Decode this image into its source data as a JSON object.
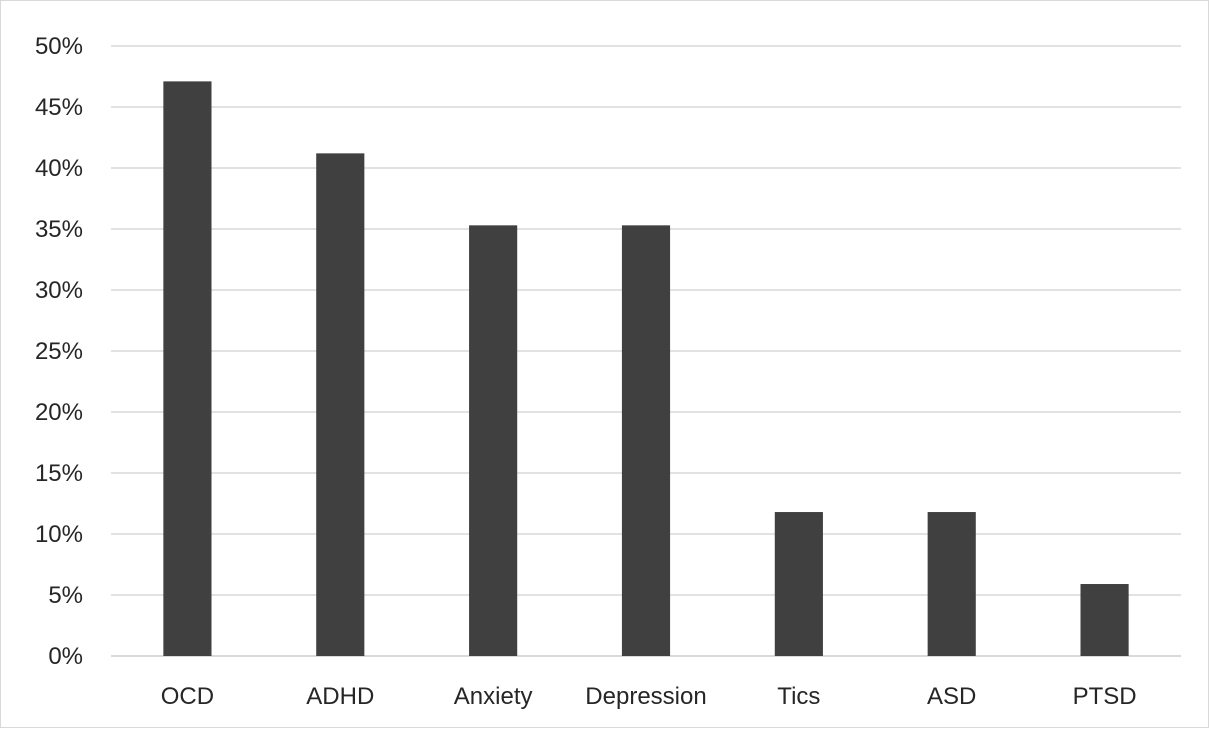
{
  "chart_data": {
    "type": "bar",
    "title": "",
    "xlabel": "",
    "ylabel": "",
    "categories": [
      "OCD",
      "ADHD",
      "Anxiety",
      "Depression",
      "Tics",
      "ASD",
      "PTSD"
    ],
    "values": [
      47.1,
      41.2,
      35.3,
      35.3,
      11.8,
      11.8,
      5.9
    ],
    "ylim": [
      0,
      50
    ],
    "y_ticks": [
      "0%",
      "5%",
      "10%",
      "15%",
      "20%",
      "25%",
      "30%",
      "35%",
      "40%",
      "45%",
      "50%"
    ],
    "grid": true,
    "legend": "none",
    "colors": {
      "bar": "#404040",
      "grid": "#d9d9d9",
      "text": "#262626"
    }
  }
}
